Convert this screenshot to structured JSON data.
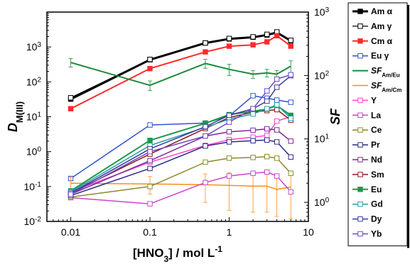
{
  "chart_data": {
    "type": "line",
    "x_axis": {
      "label": "[HNO3] / mol L-1",
      "label_parts": {
        "base": "[HNO",
        "sub": "3",
        "mid": "] / mol L",
        "sup": "-1"
      },
      "scale": "log",
      "lim": [
        0.005,
        10
      ],
      "ticks": [
        0.01,
        0.1,
        1,
        10
      ],
      "tick_labels": [
        "0.01",
        "0.1",
        "1",
        "10"
      ]
    },
    "y_axis_left": {
      "label": "DM(III)",
      "label_parts": {
        "base": "D",
        "sub": "M(III)"
      },
      "scale": "log",
      "lim": [
        0.01,
        10000
      ],
      "ticks": [
        0.01,
        0.1,
        1,
        10,
        100,
        1000
      ],
      "tick_labels": [
        "10",
        "10",
        "10",
        "10",
        "10",
        "10"
      ],
      "tick_exponents": [
        "-2",
        "-1",
        "0",
        "1",
        "2",
        "3"
      ]
    },
    "y_axis_right": {
      "label": "SF",
      "scale": "log",
      "lim": [
        0.5,
        1000
      ],
      "ticks": [
        1,
        10,
        100,
        1000
      ],
      "tick_labels": [
        "10",
        "10",
        "10",
        "10"
      ],
      "tick_exponents": [
        "0",
        "1",
        "2",
        "3"
      ]
    },
    "x": [
      0.01,
      0.1,
      0.5,
      1,
      2,
      3,
      4,
      6
    ],
    "grid": false,
    "legend_position": "right-outside",
    "series": [
      {
        "name": "Am α",
        "name_parts": {
          "base": "Am α",
          "sub": ""
        },
        "axis": "left",
        "color": "#000000",
        "marker": "filled-square",
        "width": 3,
        "values": [
          32,
          430,
          1300,
          1700,
          1900,
          2200,
          2600,
          1500
        ]
      },
      {
        "name": "Am γ",
        "name_parts": {
          "base": "Am γ",
          "sub": ""
        },
        "axis": "left",
        "color": "#000000",
        "marker": "open-square",
        "width": 1.2,
        "values": [
          35,
          440,
          1300,
          1750,
          1950,
          2300,
          2700,
          1550
        ]
      },
      {
        "name": "Cm α",
        "name_parts": {
          "base": "Cm α",
          "sub": ""
        },
        "axis": "left",
        "color": "#ff2a2a",
        "marker": "filled-square",
        "width": 2,
        "values": [
          17,
          240,
          720,
          1050,
          1150,
          1400,
          2100,
          1050
        ]
      },
      {
        "name": "Eu γ",
        "name_parts": {
          "base": "Eu γ",
          "sub": ""
        },
        "axis": "left",
        "color": "#3355cc",
        "marker": "open-square",
        "width": 1.5,
        "values": [
          0.17,
          5.8,
          6.6,
          10.5,
          40,
          34,
          30,
          26
        ]
      },
      {
        "name": "SF Am/Eu",
        "name_parts": {
          "base": "SF",
          "sub": "Am/Eu"
        },
        "axis": "right",
        "color": "#1a8a3a",
        "marker": "none",
        "width": 2,
        "values": [
          160,
          70,
          155,
          125,
          105,
          110,
          105,
          140
        ],
        "error": [
          25,
          12,
          25,
          25,
          15,
          15,
          15,
          30
        ]
      },
      {
        "name": "SF Am/Cm",
        "name_parts": {
          "base": "SF",
          "sub": "Am/Cm"
        },
        "axis": "right",
        "color": "#ff8c1a",
        "marker": "none",
        "width": 1.5,
        "values": [
          2.0,
          1.95,
          1.9,
          1.85,
          1.8,
          1.8,
          1.6,
          1.75
        ],
        "error": [
          0.5,
          0.6,
          0.9,
          1.1,
          1.1,
          1.1,
          1.0,
          1.2
        ]
      },
      {
        "name": "Y",
        "name_parts": {
          "base": "Y",
          "sub": ""
        },
        "axis": "left",
        "color": "#ff44cc",
        "marker": "open-square",
        "width": 1.5,
        "values": [
          0.07,
          0.5,
          1.5,
          2.2,
          2.6,
          2.9,
          7.5,
          10
        ]
      },
      {
        "name": "La",
        "name_parts": {
          "base": "La",
          "sub": ""
        },
        "axis": "left",
        "color": "#cc44cc",
        "marker": "open-square",
        "width": 1.5,
        "values": [
          0.048,
          0.032,
          0.13,
          0.2,
          0.24,
          0.26,
          0.2,
          0.07
        ]
      },
      {
        "name": "Ce",
        "name_parts": {
          "base": "Ce",
          "sub": ""
        },
        "axis": "left",
        "color": "#8a8a2a",
        "marker": "open-square",
        "width": 1.5,
        "values": [
          0.05,
          0.1,
          0.5,
          0.65,
          0.68,
          0.72,
          0.65,
          0.24
        ]
      },
      {
        "name": "Pr",
        "name_parts": {
          "base": "Pr",
          "sub": ""
        },
        "axis": "left",
        "color": "#2a2a8a",
        "marker": "open-square",
        "width": 1.5,
        "values": [
          0.055,
          0.33,
          1.45,
          1.9,
          2.05,
          2.15,
          1.9,
          0.7
        ]
      },
      {
        "name": "Nd",
        "name_parts": {
          "base": "Nd",
          "sub": ""
        },
        "axis": "left",
        "color": "#7a2a9a",
        "marker": "open-square",
        "width": 1.5,
        "values": [
          0.06,
          0.55,
          2.8,
          3.7,
          4.1,
          4.5,
          4.2,
          2.0
        ]
      },
      {
        "name": "Sm",
        "name_parts": {
          "base": "Sm",
          "sub": ""
        },
        "axis": "left",
        "color": "#8a1a1a",
        "marker": "open-square",
        "width": 1.5,
        "values": [
          0.065,
          0.85,
          4.6,
          9.5,
          13.5,
          15,
          16,
          8
        ]
      },
      {
        "name": "Eu",
        "name_parts": {
          "base": "Eu",
          "sub": ""
        },
        "axis": "left",
        "color": "#1a9a4a",
        "marker": "filled-square",
        "width": 2,
        "values": [
          0.075,
          2.1,
          6.5,
          11.5,
          14.5,
          16.5,
          21,
          11
        ]
      },
      {
        "name": "Gd",
        "name_parts": {
          "base": "Gd",
          "sub": ""
        },
        "axis": "left",
        "color": "#2a9aaa",
        "marker": "open-square",
        "width": 1.5,
        "values": [
          0.07,
          1.5,
          5,
          8.5,
          12,
          17,
          22,
          9
        ]
      },
      {
        "name": "Dy",
        "name_parts": {
          "base": "Dy",
          "sub": ""
        },
        "axis": "left",
        "color": "#3a3a9a",
        "marker": "open-square",
        "width": 1.5,
        "values": [
          0.065,
          1.2,
          5.2,
          11,
          17,
          28,
          70,
          150
        ]
      },
      {
        "name": "Yb",
        "name_parts": {
          "base": "Yb",
          "sub": ""
        },
        "axis": "left",
        "color": "#6a4ac8",
        "marker": "open-square",
        "width": 1.5,
        "values": [
          0.06,
          1.0,
          2.8,
          7,
          17,
          55,
          120,
          160
        ]
      }
    ]
  }
}
